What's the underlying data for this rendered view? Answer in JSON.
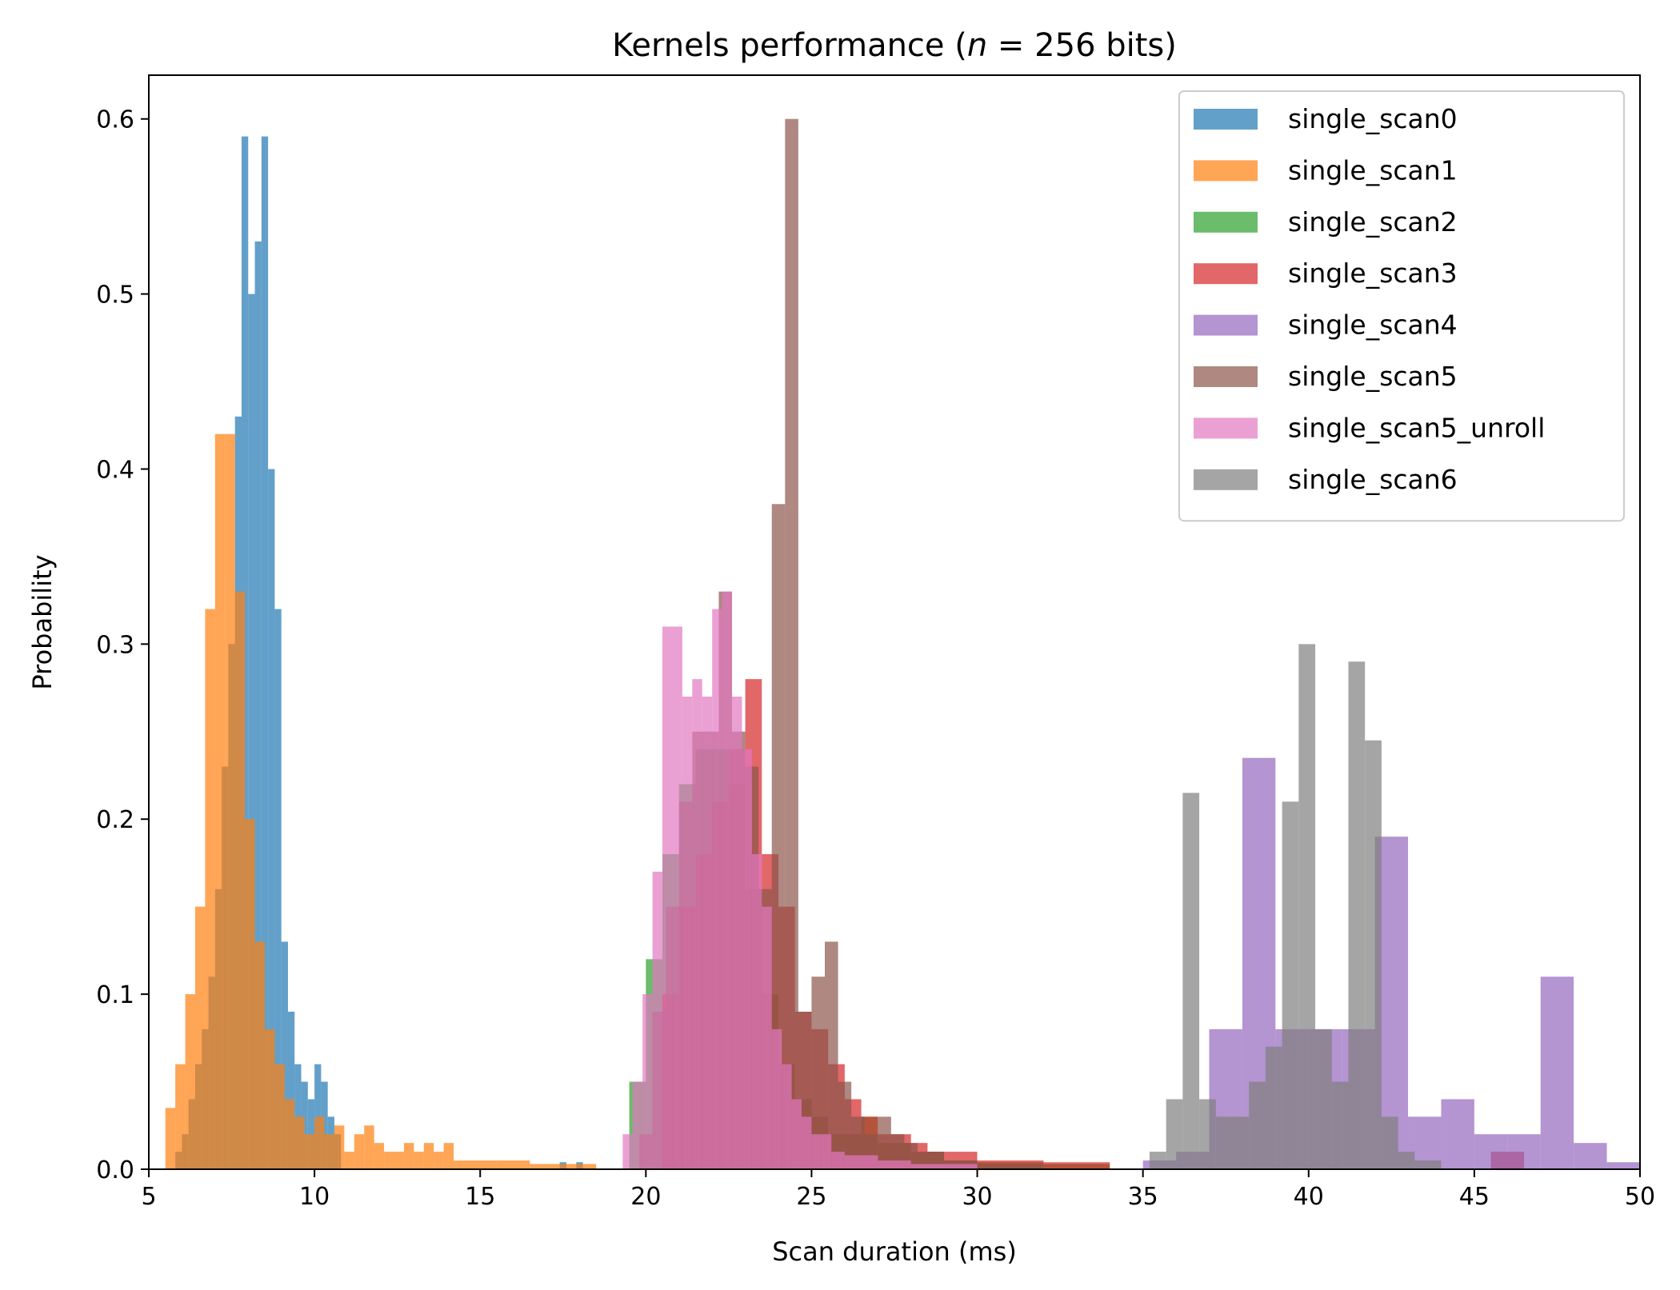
{
  "chart_data": {
    "type": "histogram",
    "title": "Kernels performance (n = 256 bits)",
    "xlabel": "Scan duration (ms)",
    "ylabel": "Probability",
    "xlim": [
      5,
      50
    ],
    "ylim": [
      0,
      0.625
    ],
    "xticks": [
      5,
      10,
      15,
      20,
      25,
      30,
      35,
      40,
      45,
      50
    ],
    "xtick_labels": [
      "5",
      "10",
      "15",
      "20",
      "25",
      "30",
      "35",
      "40",
      "45",
      "50"
    ],
    "yticks": [
      0.0,
      0.1,
      0.2,
      0.3,
      0.4,
      0.5,
      0.6
    ],
    "ytick_labels": [
      "0.0",
      "0.1",
      "0.2",
      "0.3",
      "0.4",
      "0.5",
      "0.6"
    ],
    "legend_position": "top-right",
    "opacity": 0.7,
    "series": [
      {
        "name": "single_scan0",
        "color": "#1f77b4",
        "bins": [
          [
            5.8,
            6.0,
            0.01
          ],
          [
            6.0,
            6.2,
            0.02
          ],
          [
            6.2,
            6.4,
            0.04
          ],
          [
            6.4,
            6.6,
            0.06
          ],
          [
            6.6,
            6.8,
            0.08
          ],
          [
            6.8,
            7.0,
            0.11
          ],
          [
            7.0,
            7.2,
            0.16
          ],
          [
            7.2,
            7.4,
            0.23
          ],
          [
            7.4,
            7.6,
            0.3
          ],
          [
            7.6,
            7.8,
            0.43
          ],
          [
            7.8,
            8.0,
            0.59
          ],
          [
            8.0,
            8.2,
            0.5
          ],
          [
            8.2,
            8.4,
            0.53
          ],
          [
            8.4,
            8.6,
            0.59
          ],
          [
            8.6,
            8.8,
            0.4
          ],
          [
            8.8,
            9.0,
            0.32
          ],
          [
            9.0,
            9.2,
            0.13
          ],
          [
            9.2,
            9.4,
            0.09
          ],
          [
            9.4,
            9.6,
            0.06
          ],
          [
            9.6,
            9.8,
            0.05
          ],
          [
            9.8,
            10.0,
            0.04
          ],
          [
            10.0,
            10.2,
            0.06
          ],
          [
            10.2,
            10.4,
            0.05
          ],
          [
            10.4,
            10.6,
            0.03
          ],
          [
            10.6,
            10.8,
            0.02
          ],
          [
            17.4,
            17.6,
            0.004
          ],
          [
            17.9,
            18.1,
            0.004
          ]
        ]
      },
      {
        "name": "single_scan1",
        "color": "#ff7f0e",
        "bins": [
          [
            5.5,
            5.8,
            0.035
          ],
          [
            5.8,
            6.1,
            0.06
          ],
          [
            6.1,
            6.4,
            0.1
          ],
          [
            6.4,
            6.7,
            0.15
          ],
          [
            6.7,
            7.0,
            0.32
          ],
          [
            7.0,
            7.3,
            0.42
          ],
          [
            7.3,
            7.6,
            0.42
          ],
          [
            7.6,
            7.9,
            0.33
          ],
          [
            7.9,
            8.2,
            0.2
          ],
          [
            8.2,
            8.5,
            0.13
          ],
          [
            8.5,
            8.8,
            0.08
          ],
          [
            8.8,
            9.1,
            0.06
          ],
          [
            9.1,
            9.4,
            0.04
          ],
          [
            9.4,
            9.7,
            0.03
          ],
          [
            9.7,
            10.0,
            0.02
          ],
          [
            10.0,
            10.3,
            0.03
          ],
          [
            10.3,
            10.6,
            0.02
          ],
          [
            10.6,
            10.9,
            0.025
          ],
          [
            10.9,
            11.2,
            0.01
          ],
          [
            11.2,
            11.5,
            0.02
          ],
          [
            11.5,
            11.8,
            0.025
          ],
          [
            11.8,
            12.1,
            0.015
          ],
          [
            12.1,
            12.4,
            0.01
          ],
          [
            12.4,
            12.7,
            0.01
          ],
          [
            12.7,
            13.0,
            0.015
          ],
          [
            13.0,
            13.3,
            0.01
          ],
          [
            13.3,
            13.6,
            0.015
          ],
          [
            13.6,
            13.9,
            0.01
          ],
          [
            13.9,
            14.2,
            0.015
          ],
          [
            14.2,
            14.5,
            0.005
          ],
          [
            14.5,
            15.5,
            0.005
          ],
          [
            15.5,
            16.5,
            0.005
          ],
          [
            16.5,
            17.5,
            0.003
          ],
          [
            17.5,
            18.5,
            0.003
          ]
        ]
      },
      {
        "name": "single_scan2",
        "color": "#2ca02c",
        "bins": [
          [
            19.5,
            20.0,
            0.05
          ],
          [
            20.0,
            20.5,
            0.12
          ],
          [
            20.5,
            21.0,
            0.18
          ],
          [
            21.0,
            21.5,
            0.22
          ],
          [
            21.5,
            22.0,
            0.24
          ],
          [
            22.0,
            22.5,
            0.24
          ],
          [
            22.5,
            23.0,
            0.22
          ],
          [
            23.0,
            23.5,
            0.16
          ],
          [
            23.5,
            24.0,
            0.1
          ],
          [
            24.0,
            24.5,
            0.06
          ],
          [
            24.5,
            25.0,
            0.04
          ],
          [
            25.0,
            25.5,
            0.03
          ],
          [
            25.5,
            26.0,
            0.02
          ],
          [
            26.0,
            26.5,
            0.02
          ],
          [
            26.5,
            27.0,
            0.03
          ],
          [
            27.0,
            28.0,
            0.015
          ],
          [
            28.0,
            29.0,
            0.01
          ],
          [
            29.0,
            30.0,
            0.005
          ],
          [
            30.0,
            32.0,
            0.004
          ],
          [
            32.0,
            34.0,
            0.003
          ]
        ]
      },
      {
        "name": "single_scan3",
        "color": "#d62728",
        "bins": [
          [
            20.5,
            21.0,
            0.1
          ],
          [
            21.0,
            21.5,
            0.15
          ],
          [
            21.5,
            22.0,
            0.18
          ],
          [
            22.0,
            22.5,
            0.21
          ],
          [
            22.5,
            23.0,
            0.24
          ],
          [
            23.0,
            23.5,
            0.28
          ],
          [
            23.5,
            24.0,
            0.18
          ],
          [
            24.0,
            24.5,
            0.15
          ],
          [
            24.5,
            25.0,
            0.09
          ],
          [
            25.0,
            25.5,
            0.08
          ],
          [
            25.5,
            26.0,
            0.06
          ],
          [
            26.0,
            26.5,
            0.04
          ],
          [
            26.5,
            27.0,
            0.03
          ],
          [
            27.0,
            27.5,
            0.02
          ],
          [
            27.5,
            28.0,
            0.02
          ],
          [
            28.0,
            28.5,
            0.015
          ],
          [
            28.5,
            29.0,
            0.01
          ],
          [
            29.0,
            30.0,
            0.01
          ],
          [
            30.0,
            32.0,
            0.005
          ],
          [
            32.0,
            34.0,
            0.004
          ],
          [
            45.5,
            46.5,
            0.01
          ]
        ]
      },
      {
        "name": "single_scan4",
        "color": "#9467bd",
        "bins": [
          [
            35.0,
            36.0,
            0.005
          ],
          [
            36.0,
            37.0,
            0.01
          ],
          [
            37.0,
            38.0,
            0.08
          ],
          [
            38.0,
            39.0,
            0.235
          ],
          [
            39.0,
            40.0,
            0.08
          ],
          [
            40.0,
            41.0,
            0.08
          ],
          [
            41.0,
            42.0,
            0.08
          ],
          [
            42.0,
            43.0,
            0.19
          ],
          [
            43.0,
            44.0,
            0.03
          ],
          [
            44.0,
            45.0,
            0.04
          ],
          [
            45.0,
            46.0,
            0.02
          ],
          [
            46.0,
            47.0,
            0.02
          ],
          [
            47.0,
            48.0,
            0.11
          ],
          [
            48.0,
            49.0,
            0.015
          ],
          [
            49.0,
            50.0,
            0.004
          ]
        ]
      },
      {
        "name": "single_scan5",
        "color": "#8c564b",
        "bins": [
          [
            19.8,
            20.2,
            0.02
          ],
          [
            20.2,
            20.6,
            0.09
          ],
          [
            20.6,
            21.0,
            0.15
          ],
          [
            21.0,
            21.4,
            0.21
          ],
          [
            21.4,
            21.8,
            0.25
          ],
          [
            21.8,
            22.2,
            0.25
          ],
          [
            22.2,
            22.6,
            0.33
          ],
          [
            22.6,
            23.0,
            0.25
          ],
          [
            23.0,
            23.4,
            0.23
          ],
          [
            23.4,
            23.8,
            0.16
          ],
          [
            23.8,
            24.2,
            0.38
          ],
          [
            24.2,
            24.6,
            0.6
          ],
          [
            24.6,
            25.0,
            0.09
          ],
          [
            25.0,
            25.4,
            0.11
          ],
          [
            25.4,
            25.8,
            0.13
          ],
          [
            25.8,
            26.2,
            0.05
          ],
          [
            26.2,
            26.6,
            0.03
          ],
          [
            26.6,
            27.0,
            0.02
          ],
          [
            27.0,
            27.4,
            0.03
          ],
          [
            27.4,
            27.8,
            0.02
          ],
          [
            27.8,
            28.2,
            0.015
          ],
          [
            28.2,
            29.0,
            0.01
          ],
          [
            29.0,
            30.0,
            0.005
          ],
          [
            30.0,
            32.0,
            0.003
          ]
        ]
      },
      {
        "name": "single_scan5_unroll",
        "color": "#e377c2",
        "bins": [
          [
            19.3,
            19.6,
            0.02
          ],
          [
            19.6,
            19.9,
            0.05
          ],
          [
            19.9,
            20.2,
            0.1
          ],
          [
            20.2,
            20.5,
            0.17
          ],
          [
            20.5,
            20.8,
            0.31
          ],
          [
            20.8,
            21.1,
            0.31
          ],
          [
            21.1,
            21.4,
            0.27
          ],
          [
            21.4,
            21.7,
            0.28
          ],
          [
            21.7,
            22.0,
            0.27
          ],
          [
            22.0,
            22.3,
            0.32
          ],
          [
            22.3,
            22.6,
            0.33
          ],
          [
            22.6,
            22.9,
            0.27
          ],
          [
            22.9,
            23.2,
            0.24
          ],
          [
            23.2,
            23.5,
            0.18
          ],
          [
            23.5,
            23.8,
            0.15
          ],
          [
            23.8,
            24.1,
            0.08
          ],
          [
            24.1,
            24.4,
            0.06
          ],
          [
            24.4,
            24.7,
            0.04
          ],
          [
            24.7,
            25.0,
            0.03
          ],
          [
            25.0,
            25.3,
            0.02
          ],
          [
            25.3,
            25.6,
            0.02
          ],
          [
            25.6,
            26.0,
            0.01
          ],
          [
            26.0,
            27.0,
            0.008
          ],
          [
            27.0,
            28.0,
            0.005
          ],
          [
            28.0,
            30.0,
            0.003
          ]
        ]
      },
      {
        "name": "single_scan6",
        "color": "#7f7f7f",
        "bins": [
          [
            35.2,
            35.7,
            0.01
          ],
          [
            35.7,
            36.2,
            0.04
          ],
          [
            36.2,
            36.7,
            0.215
          ],
          [
            36.7,
            37.2,
            0.04
          ],
          [
            37.2,
            37.7,
            0.03
          ],
          [
            37.7,
            38.2,
            0.03
          ],
          [
            38.2,
            38.7,
            0.05
          ],
          [
            38.7,
            39.2,
            0.07
          ],
          [
            39.2,
            39.7,
            0.21
          ],
          [
            39.7,
            40.2,
            0.3
          ],
          [
            40.2,
            40.7,
            0.08
          ],
          [
            40.7,
            41.2,
            0.05
          ],
          [
            41.2,
            41.7,
            0.29
          ],
          [
            41.7,
            42.2,
            0.245
          ],
          [
            42.2,
            42.7,
            0.03
          ],
          [
            42.7,
            43.2,
            0.01
          ],
          [
            43.2,
            44.0,
            0.005
          ]
        ]
      }
    ]
  }
}
